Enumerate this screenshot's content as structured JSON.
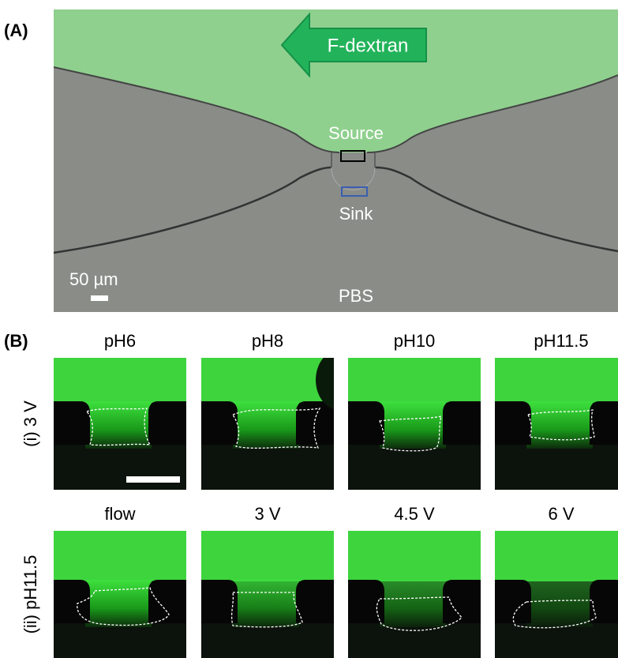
{
  "panel_a": {
    "label": "(A)",
    "arrow_label": "F-dextran",
    "source_label": "Source",
    "sink_label": "Sink",
    "bottom_label": "PBS",
    "scale_label": "50 µm"
  },
  "panel_b": {
    "label": "(B)",
    "rows": [
      {
        "label": "(i) 3 V",
        "columns": [
          "pH6",
          "pH8",
          "pH10",
          "pH11.5"
        ]
      },
      {
        "label": "(ii) pH11.5",
        "columns": [
          "flow",
          "3 V",
          "4.5 V",
          "6 V"
        ]
      }
    ]
  }
}
